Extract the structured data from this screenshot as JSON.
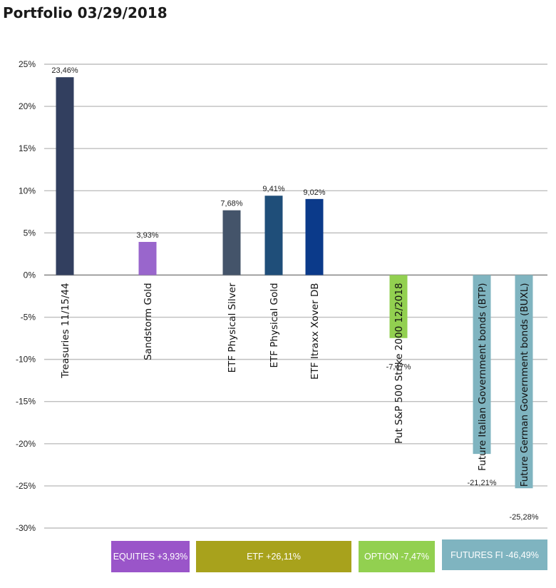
{
  "title": "Portfolio 03/29/2018",
  "chart_data": {
    "type": "bar",
    "title": "Portfolio 03/29/2018",
    "xlabel": "",
    "ylabel": "",
    "ylim": [
      -30,
      25
    ],
    "yticks": [
      25,
      20,
      15,
      10,
      5,
      0,
      -5,
      -10,
      -15,
      -20,
      -25,
      -30
    ],
    "ytick_labels": [
      "25%",
      "20%",
      "15%",
      "10%",
      "5%",
      "0%",
      "-5%",
      "-10%",
      "-15%",
      "-20%",
      "-25%",
      "-30%"
    ],
    "grid": true,
    "legend": "none",
    "categories": [
      "Treasuries 11/15/44",
      "Sandstorm Gold",
      "ETF Physical Silver",
      "ETF Physical Gold",
      "ETF Itraxx Xover DB",
      "Put S&P 500 Strike 2000 12/2018",
      "Future Italian Government bonds (BTP)",
      "Future German Government bonds (BUXL)"
    ],
    "values": [
      23.46,
      3.93,
      7.68,
      9.41,
      9.02,
      -7.47,
      -21.21,
      -25.28
    ],
    "value_labels": [
      "23,46%",
      "3,93%",
      "7,68%",
      "9,41%",
      "9,02%",
      "-7,47%",
      "-21,21%",
      "-25,28%"
    ],
    "colors": [
      "#323f5f",
      "#9966cc",
      "#44546a",
      "#1f4e79",
      "#0b3a8a",
      "#92d050",
      "#7fb4c0",
      "#7fb4c0"
    ],
    "groups": [
      {
        "label": "EQUITIES +3,93%",
        "color": "#9a55c9",
        "text_color": "#ffffff"
      },
      {
        "label": "ETF +26,11%",
        "color": "#a8a21c",
        "text_color": "#ffffff"
      },
      {
        "label": "OPTION -7,47%",
        "color": "#92d050",
        "text_color": "#ffffff"
      },
      {
        "label": "FUTURES FI -46,49%",
        "color": "#7fb4c0",
        "text_color": "#ffffff"
      }
    ]
  }
}
